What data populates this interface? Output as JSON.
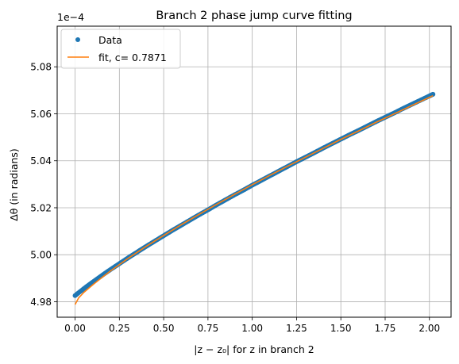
{
  "chart_data": {
    "type": "scatter",
    "title": "Branch 2 phase jump curve fitting",
    "xlabel": "|z − z₀| for z in branch 2",
    "ylabel": "Δθ (in radians)",
    "y_offset_label": "1e−4",
    "xlim": [
      -0.101,
      2.122
    ],
    "ylim": [
      4.9734,
      5.0973
    ],
    "x_ticks": [
      0.0,
      0.25,
      0.5,
      0.75,
      1.0,
      1.25,
      1.5,
      1.75,
      2.0
    ],
    "x_tick_labels": [
      "0.00",
      "0.25",
      "0.50",
      "0.75",
      "1.00",
      "1.25",
      "1.50",
      "1.75",
      "2.00"
    ],
    "y_ticks": [
      4.98,
      5.0,
      5.02,
      5.04,
      5.06,
      5.08
    ],
    "y_tick_labels": [
      "4.98",
      "5.00",
      "5.02",
      "5.04",
      "5.06",
      "5.08"
    ],
    "grid": true,
    "legend_position": "top-left",
    "series": [
      {
        "name": "Data",
        "kind": "points",
        "color": "#1f77b4",
        "x": [
          0.0,
          0.05,
          0.1,
          0.15,
          0.2,
          0.25,
          0.3,
          0.35,
          0.4,
          0.45,
          0.5,
          0.55,
          0.6,
          0.65,
          0.7,
          0.75,
          0.8,
          0.85,
          0.9,
          0.95,
          1.0,
          1.05,
          1.1,
          1.15,
          1.2,
          1.25,
          1.3,
          1.35,
          1.4,
          1.45,
          1.5,
          1.55,
          1.6,
          1.65,
          1.7,
          1.75,
          1.8,
          1.85,
          1.9,
          1.95,
          2.0,
          2.02
        ],
        "y": [
          4.9826,
          4.9856,
          4.9884,
          4.9911,
          4.9937,
          4.9962,
          4.9987,
          5.0011,
          5.0035,
          5.0058,
          5.0081,
          5.0104,
          5.0126,
          5.0148,
          5.017,
          5.0191,
          5.0213,
          5.0234,
          5.0255,
          5.0275,
          5.0296,
          5.0316,
          5.0336,
          5.0356,
          5.0376,
          5.0396,
          5.0415,
          5.0434,
          5.0454,
          5.0473,
          5.0492,
          5.0511,
          5.0529,
          5.0548,
          5.0567,
          5.0585,
          5.0603,
          5.0622,
          5.064,
          5.0658,
          5.0676,
          5.0683
        ]
      },
      {
        "name": "fit, c= 0.7871",
        "kind": "line",
        "color": "#ff7f0e",
        "x": [
          0.0,
          0.02,
          0.05,
          0.1,
          0.15,
          0.2,
          0.25,
          0.3,
          0.4,
          0.5,
          0.6,
          0.7,
          0.8,
          0.9,
          1.0,
          1.1,
          1.2,
          1.3,
          1.4,
          1.5,
          1.6,
          1.7,
          1.8,
          1.9,
          2.0,
          2.02
        ],
        "y": [
          4.9788,
          4.9816,
          4.984,
          4.9872,
          4.9902,
          4.9931,
          4.9958,
          4.9985,
          5.0035,
          5.0082,
          5.0128,
          5.0172,
          5.0215,
          5.0257,
          5.0298,
          5.0338,
          5.0377,
          5.0415,
          5.0453,
          5.0491,
          5.0527,
          5.0564,
          5.0599,
          5.0635,
          5.067,
          5.0677
        ]
      }
    ]
  }
}
